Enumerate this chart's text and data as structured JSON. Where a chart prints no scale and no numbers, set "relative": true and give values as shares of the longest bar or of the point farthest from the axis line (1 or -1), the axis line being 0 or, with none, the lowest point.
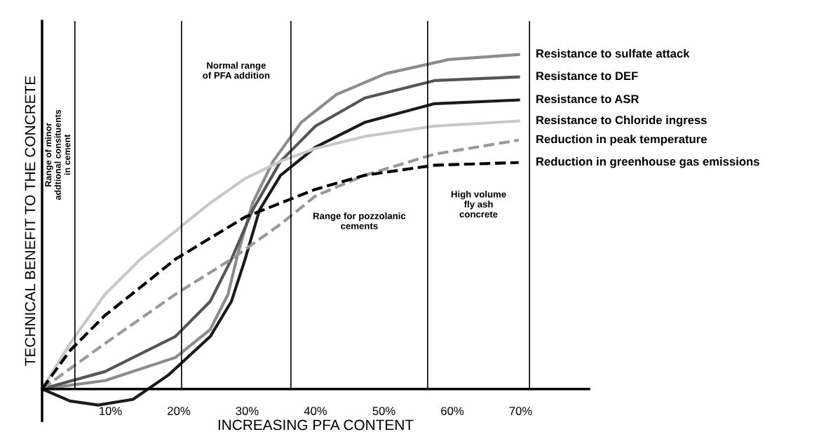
{
  "chart_data": {
    "type": "line",
    "relative": true,
    "xlabel": "INCREASING PFA CONTENT",
    "ylabel": "TECHNICAL BENEFIT TO THE CONCRETE",
    "xlim": [
      0,
      80
    ],
    "xticks": [
      {
        "value": 10,
        "label": "10%"
      },
      {
        "value": 20,
        "label": "20%"
      },
      {
        "value": 30,
        "label": "30%"
      },
      {
        "value": 40,
        "label": "40%"
      },
      {
        "value": 50,
        "label": "50%"
      },
      {
        "value": 60,
        "label": "60%"
      },
      {
        "value": 70,
        "label": "70%"
      }
    ],
    "grid": false,
    "legend": false,
    "marker": "none",
    "series": [
      {
        "name": "Resistance to sulfate attack",
        "color": "#8c8c8c",
        "line_style": "solid",
        "x": [
          0,
          9.2,
          19.5,
          24.6,
          27.2,
          28.7,
          30.8,
          33.8,
          37.9,
          43.1,
          50.3,
          59.5,
          69.7
        ],
        "values": [
          0,
          0.025,
          0.094,
          0.178,
          0.283,
          0.409,
          0.556,
          0.681,
          0.797,
          0.881,
          0.943,
          0.985,
          1
        ]
      },
      {
        "name": "Resistance to DEF",
        "color": "#555555",
        "line_style": "solid",
        "x": [
          0,
          9.2,
          19.5,
          24.6,
          27.7,
          30.8,
          34.9,
          40,
          47.2,
          57.4,
          69.7
        ],
        "values": [
          0,
          0.052,
          0.157,
          0.262,
          0.388,
          0.535,
          0.681,
          0.786,
          0.87,
          0.922,
          0.933
        ]
      },
      {
        "name": "Resistance to ASR",
        "color": "#1a1a1a",
        "line_style": "solid",
        "x": [
          0,
          4.1,
          8.2,
          13.3,
          18.5,
          24.6,
          27.7,
          29.7,
          31.8,
          34.9,
          40,
          47.2,
          57.4,
          69.7
        ],
        "values": [
          0,
          -0.036,
          -0.048,
          -0.031,
          0.042,
          0.157,
          0.262,
          0.388,
          0.535,
          0.639,
          0.723,
          0.797,
          0.853,
          0.864
        ]
      },
      {
        "name": "Resistance to Chloride ingress",
        "color": "#c8c8c8",
        "line_style": "solid",
        "x": [
          0,
          4.1,
          9.2,
          14.4,
          19.5,
          24.6,
          29.7,
          34.9,
          40,
          47.2,
          57.4,
          69.7
        ],
        "values": [
          0,
          0.136,
          0.283,
          0.388,
          0.472,
          0.556,
          0.629,
          0.681,
          0.719,
          0.755,
          0.786,
          0.801
        ]
      },
      {
        "name": "Reduction in peak temperature",
        "color": "#999999",
        "line_style": "dashed",
        "x": [
          0,
          9.2,
          19.5,
          27.7,
          34.9,
          40,
          47.2,
          57.4,
          69.7
        ],
        "values": [
          0,
          0.136,
          0.283,
          0.388,
          0.493,
          0.577,
          0.639,
          0.702,
          0.744
        ]
      },
      {
        "name": "Reduction in greenhouse gas emissions",
        "color": "#000000",
        "line_style": "dashed",
        "x": [
          0,
          4.1,
          9.2,
          14.4,
          19.5,
          24.6,
          29.7,
          34.9,
          40,
          47.2,
          57.4,
          69.7
        ],
        "values": [
          0,
          0.115,
          0.22,
          0.304,
          0.388,
          0.451,
          0.514,
          0.556,
          0.597,
          0.639,
          0.669,
          0.677
        ]
      }
    ],
    "ref_lines": [
      {
        "axis": "x",
        "value": 4.8,
        "color": "#000000"
      },
      {
        "axis": "x",
        "value": 20.4,
        "color": "#000000"
      },
      {
        "axis": "x",
        "value": 36.4,
        "color": "#000000"
      },
      {
        "axis": "x",
        "value": 56.4,
        "color": "#000000"
      },
      {
        "axis": "x",
        "value": 71.3,
        "color": "#000000"
      }
    ],
    "annotations": [
      "Range of minor\naddtional consituents\nin cement",
      "Normal range\nof PFA addition",
      "Range for pozzolanic\ncements",
      "High volume\nfly ash\nconcrete"
    ]
  }
}
